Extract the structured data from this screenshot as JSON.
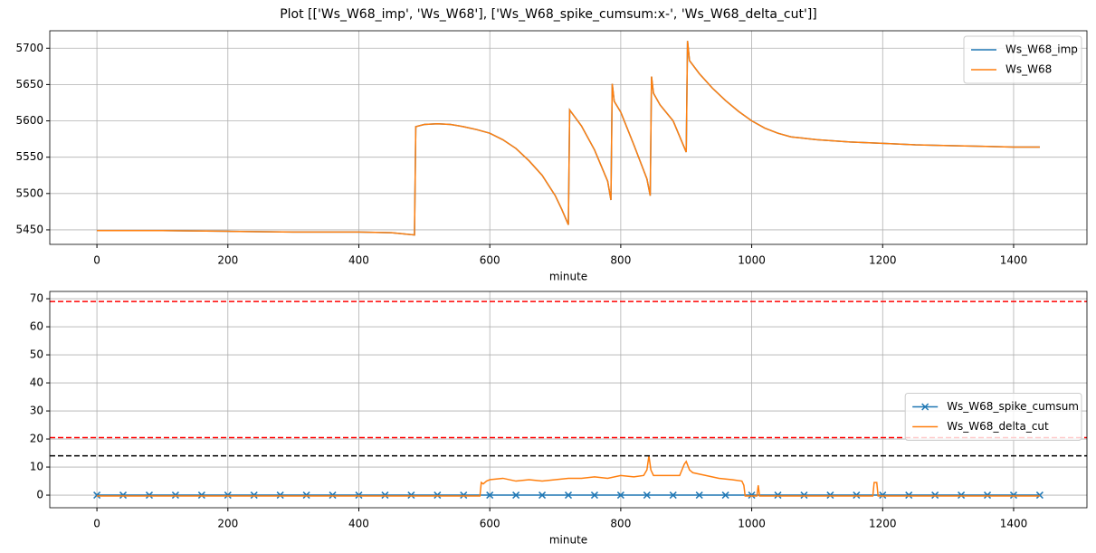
{
  "title": "Plot [['Ws_W68_imp', 'Ws_W68'], ['Ws_W68_spike_cumsum:x-', 'Ws_W68_delta_cut']]",
  "chart_data": [
    {
      "type": "line",
      "xlabel": "minute",
      "legend": "upper right",
      "grid": true,
      "xlim": [
        -72,
        1512
      ],
      "xticks": [
        0,
        200,
        400,
        600,
        800,
        1000,
        1200,
        1400
      ],
      "ylim": [
        5430,
        5724
      ],
      "yticks": [
        5450,
        5500,
        5550,
        5600,
        5650,
        5700
      ],
      "x": [
        0,
        50,
        100,
        150,
        200,
        250,
        300,
        350,
        400,
        450,
        485,
        487,
        500,
        520,
        540,
        560,
        580,
        600,
        620,
        640,
        660,
        680,
        700,
        710,
        720,
        722,
        740,
        760,
        780,
        785,
        787,
        790,
        800,
        820,
        840,
        845,
        847,
        850,
        860,
        880,
        900,
        902,
        905,
        920,
        940,
        960,
        980,
        1000,
        1020,
        1040,
        1060,
        1080,
        1100,
        1150,
        1200,
        1250,
        1300,
        1350,
        1400,
        1440
      ],
      "series": [
        {
          "name": "Ws_W68_imp",
          "color": "#1f77b4",
          "values": [
            5449,
            5449,
            5449,
            5448.5,
            5448,
            5447.5,
            5447,
            5447,
            5447,
            5446,
            5443,
            5592,
            5595,
            5596,
            5595,
            5592,
            5588,
            5583,
            5574,
            5562,
            5545,
            5525,
            5497,
            5478,
            5457,
            5615,
            5593,
            5560,
            5517,
            5491,
            5651,
            5627,
            5612,
            5567,
            5520,
            5497,
            5661,
            5638,
            5622,
            5600,
            5557,
            5710,
            5683,
            5665,
            5645,
            5628,
            5613,
            5600,
            5590,
            5583,
            5578,
            5576,
            5574,
            5571,
            5569,
            5567,
            5566,
            5565,
            5564,
            5564
          ]
        },
        {
          "name": "Ws_W68",
          "color": "#ff7f0e",
          "values": [
            5449,
            5449,
            5449,
            5448.5,
            5448,
            5447.5,
            5447,
            5447,
            5447,
            5446,
            5443,
            5592,
            5595,
            5596,
            5595,
            5592,
            5588,
            5583,
            5574,
            5562,
            5545,
            5525,
            5497,
            5478,
            5457,
            5615,
            5593,
            5560,
            5517,
            5491,
            5651,
            5627,
            5612,
            5567,
            5520,
            5497,
            5661,
            5638,
            5622,
            5600,
            5557,
            5710,
            5683,
            5665,
            5645,
            5628,
            5613,
            5600,
            5590,
            5583,
            5578,
            5576,
            5574,
            5571,
            5569,
            5567,
            5566,
            5565,
            5564,
            5564
          ]
        }
      ]
    },
    {
      "type": "line",
      "xlabel": "minute",
      "legend": "center right",
      "grid": true,
      "xlim": [
        -72,
        1512
      ],
      "xticks": [
        0,
        200,
        400,
        600,
        800,
        1000,
        1200,
        1400
      ],
      "ylim": [
        -4.5,
        72.6
      ],
      "yticks": [
        0,
        10,
        20,
        30,
        40,
        50,
        60,
        70
      ],
      "hlines": [
        {
          "value": 69,
          "color": "#ff0000",
          "style": "dashed"
        },
        {
          "value": 20.5,
          "color": "#ff0000",
          "style": "dashed"
        },
        {
          "value": 14,
          "color": "#000000",
          "style": "dashed"
        }
      ],
      "series": [
        {
          "name": "Ws_W68_spike_cumsum",
          "color": "#1f77b4",
          "marker": "x",
          "x": [
            0,
            40,
            80,
            120,
            160,
            200,
            240,
            280,
            320,
            360,
            400,
            440,
            480,
            520,
            560,
            600,
            640,
            680,
            720,
            760,
            800,
            840,
            880,
            920,
            960,
            1000,
            1040,
            1080,
            1120,
            1160,
            1200,
            1240,
            1280,
            1320,
            1360,
            1400,
            1440
          ],
          "values": [
            0,
            0,
            0,
            0,
            0,
            0,
            0,
            0,
            0,
            0,
            0,
            0,
            0,
            0,
            0,
            0,
            0,
            0,
            0,
            0,
            0,
            0,
            0,
            0,
            0,
            0,
            0,
            0,
            0,
            0,
            0,
            0,
            0,
            0,
            0,
            0,
            0
          ]
        },
        {
          "name": "Ws_W68_delta_cut",
          "color": "#ff7f0e",
          "x": [
            0,
            580,
            585,
            587,
            590,
            595,
            600,
            620,
            640,
            660,
            680,
            700,
            720,
            740,
            760,
            780,
            800,
            820,
            835,
            840,
            843,
            846,
            850,
            870,
            890,
            897,
            900,
            905,
            910,
            930,
            950,
            970,
            985,
            988,
            990,
            1008,
            1010,
            1012,
            1185,
            1187,
            1191,
            1193,
            1440
          ],
          "values": [
            -0.3,
            -0.3,
            -0.3,
            4.5,
            4,
            5,
            5.5,
            6,
            5,
            5.5,
            5,
            5.5,
            6,
            6,
            6.5,
            6,
            7,
            6.5,
            7,
            9,
            14,
            9,
            7,
            7,
            7,
            11,
            12,
            9,
            8,
            7,
            6,
            5.5,
            5,
            3.5,
            -0.3,
            -0.3,
            3.5,
            -0.3,
            -0.3,
            4.5,
            4.5,
            -0.3,
            -0.3
          ]
        }
      ]
    }
  ]
}
